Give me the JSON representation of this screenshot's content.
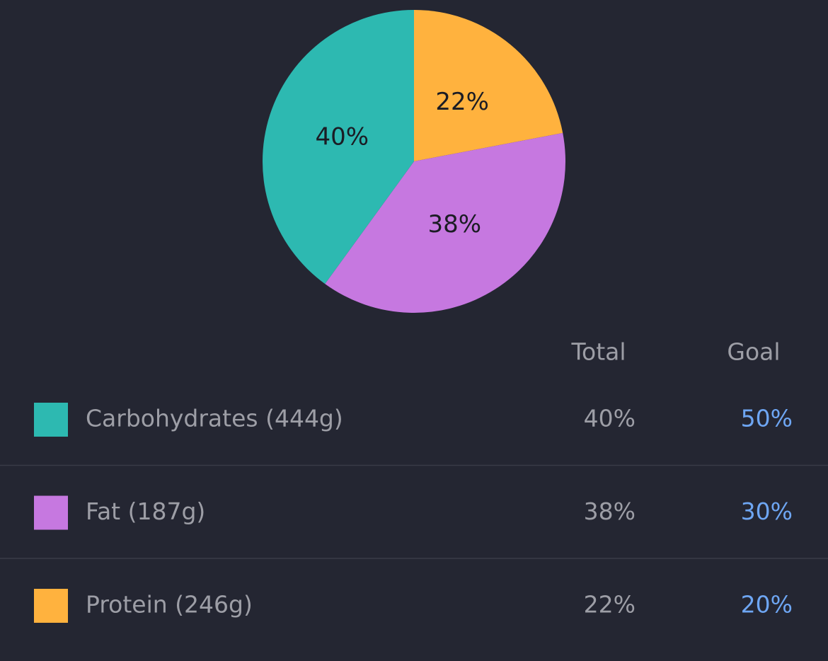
{
  "chart_data": {
    "type": "pie",
    "values": [
      22,
      38,
      40
    ],
    "value_labels": [
      "22%",
      "38%",
      "40%"
    ],
    "colors": [
      "#ffb23e",
      "#c678e0",
      "#2db9b1"
    ],
    "start_angle": 0,
    "direction": "clockwise"
  },
  "table": {
    "header": [
      "Total",
      "Goal"
    ],
    "rows": [
      {
        "label": "Carbohydrates (444g)",
        "total": "40%",
        "goal": "50%",
        "color": "#2db9b1"
      },
      {
        "label": "Fat (187g)",
        "total": "38%",
        "goal": "30%",
        "color": "#c678e0"
      },
      {
        "label": "Protein (246g)",
        "total": "22%",
        "goal": "20%",
        "color": "#ffb23e"
      }
    ]
  }
}
